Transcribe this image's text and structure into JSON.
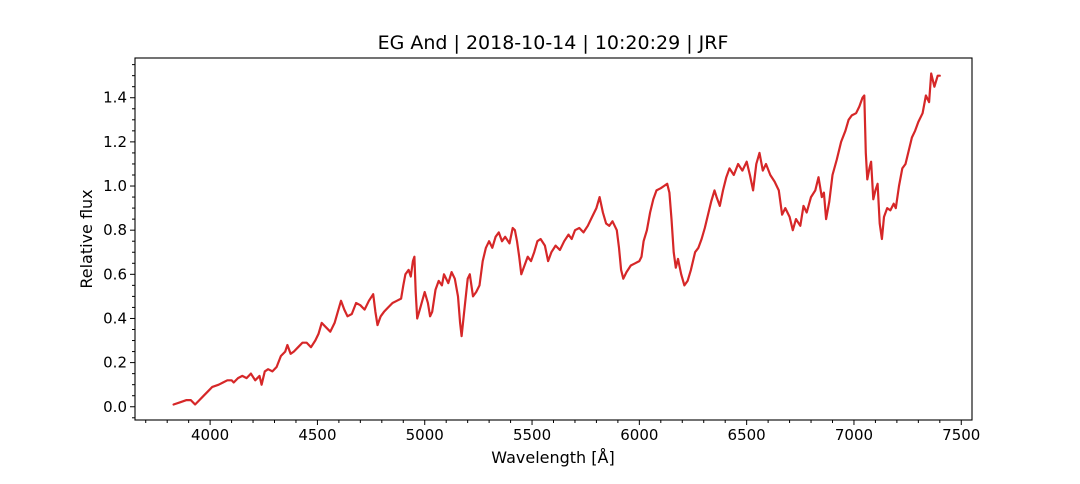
{
  "chart_data": {
    "type": "line",
    "title": "EG And | 2018-10-14 | 10:20:29 | JRF",
    "xlabel": "Wavelength [Å]",
    "ylabel": "Relative flux",
    "xlim": [
      3650,
      7550
    ],
    "ylim": [
      -0.06,
      1.58
    ],
    "x_ticks": [
      4000,
      4500,
      5000,
      5500,
      6000,
      6500,
      7000,
      7500
    ],
    "y_ticks": [
      0.0,
      0.2,
      0.4,
      0.6,
      0.8,
      1.0,
      1.2,
      1.4
    ],
    "x_tick_labels": [
      "4000",
      "4500",
      "5000",
      "5500",
      "6000",
      "6500",
      "7000",
      "7500"
    ],
    "y_tick_labels": [
      "0.0",
      "0.2",
      "0.4",
      "0.6",
      "0.8",
      "1.0",
      "1.2",
      "1.4"
    ],
    "grid": false,
    "legend": "none",
    "series": [
      {
        "color": "#d62728",
        "points": [
          [
            3830,
            0.01
          ],
          [
            3860,
            0.02
          ],
          [
            3890,
            0.03
          ],
          [
            3910,
            0.03
          ],
          [
            3930,
            0.01
          ],
          [
            3950,
            0.03
          ],
          [
            3970,
            0.05
          ],
          [
            3990,
            0.07
          ],
          [
            4010,
            0.09
          ],
          [
            4040,
            0.1
          ],
          [
            4060,
            0.11
          ],
          [
            4080,
            0.12
          ],
          [
            4100,
            0.12
          ],
          [
            4110,
            0.11
          ],
          [
            4130,
            0.13
          ],
          [
            4150,
            0.14
          ],
          [
            4170,
            0.13
          ],
          [
            4190,
            0.15
          ],
          [
            4210,
            0.12
          ],
          [
            4230,
            0.14
          ],
          [
            4240,
            0.1
          ],
          [
            4255,
            0.16
          ],
          [
            4270,
            0.17
          ],
          [
            4290,
            0.16
          ],
          [
            4310,
            0.18
          ],
          [
            4330,
            0.23
          ],
          [
            4350,
            0.25
          ],
          [
            4360,
            0.28
          ],
          [
            4375,
            0.24
          ],
          [
            4390,
            0.25
          ],
          [
            4410,
            0.27
          ],
          [
            4430,
            0.29
          ],
          [
            4450,
            0.29
          ],
          [
            4470,
            0.27
          ],
          [
            4490,
            0.3
          ],
          [
            4505,
            0.33
          ],
          [
            4520,
            0.38
          ],
          [
            4540,
            0.36
          ],
          [
            4560,
            0.34
          ],
          [
            4580,
            0.38
          ],
          [
            4595,
            0.43
          ],
          [
            4610,
            0.48
          ],
          [
            4625,
            0.44
          ],
          [
            4640,
            0.41
          ],
          [
            4660,
            0.42
          ],
          [
            4680,
            0.47
          ],
          [
            4700,
            0.46
          ],
          [
            4720,
            0.44
          ],
          [
            4740,
            0.48
          ],
          [
            4760,
            0.51
          ],
          [
            4770,
            0.43
          ],
          [
            4780,
            0.37
          ],
          [
            4795,
            0.41
          ],
          [
            4810,
            0.43
          ],
          [
            4830,
            0.45
          ],
          [
            4850,
            0.47
          ],
          [
            4870,
            0.48
          ],
          [
            4890,
            0.49
          ],
          [
            4900,
            0.55
          ],
          [
            4910,
            0.6
          ],
          [
            4925,
            0.62
          ],
          [
            4935,
            0.59
          ],
          [
            4945,
            0.66
          ],
          [
            4952,
            0.68
          ],
          [
            4958,
            0.52
          ],
          [
            4965,
            0.4
          ],
          [
            4980,
            0.45
          ],
          [
            5000,
            0.52
          ],
          [
            5015,
            0.47
          ],
          [
            5025,
            0.41
          ],
          [
            5035,
            0.43
          ],
          [
            5050,
            0.53
          ],
          [
            5065,
            0.57
          ],
          [
            5080,
            0.55
          ],
          [
            5090,
            0.6
          ],
          [
            5110,
            0.56
          ],
          [
            5125,
            0.61
          ],
          [
            5140,
            0.58
          ],
          [
            5155,
            0.5
          ],
          [
            5165,
            0.38
          ],
          [
            5172,
            0.32
          ],
          [
            5185,
            0.44
          ],
          [
            5200,
            0.58
          ],
          [
            5210,
            0.6
          ],
          [
            5225,
            0.5
          ],
          [
            5240,
            0.52
          ],
          [
            5255,
            0.55
          ],
          [
            5270,
            0.66
          ],
          [
            5285,
            0.72
          ],
          [
            5300,
            0.75
          ],
          [
            5315,
            0.72
          ],
          [
            5330,
            0.77
          ],
          [
            5345,
            0.79
          ],
          [
            5360,
            0.75
          ],
          [
            5375,
            0.77
          ],
          [
            5395,
            0.74
          ],
          [
            5410,
            0.81
          ],
          [
            5420,
            0.8
          ],
          [
            5430,
            0.75
          ],
          [
            5440,
            0.68
          ],
          [
            5450,
            0.6
          ],
          [
            5465,
            0.64
          ],
          [
            5480,
            0.68
          ],
          [
            5495,
            0.66
          ],
          [
            5510,
            0.7
          ],
          [
            5525,
            0.75
          ],
          [
            5540,
            0.76
          ],
          [
            5560,
            0.73
          ],
          [
            5575,
            0.66
          ],
          [
            5590,
            0.7
          ],
          [
            5610,
            0.73
          ],
          [
            5630,
            0.71
          ],
          [
            5650,
            0.75
          ],
          [
            5670,
            0.78
          ],
          [
            5685,
            0.76
          ],
          [
            5700,
            0.8
          ],
          [
            5720,
            0.81
          ],
          [
            5740,
            0.79
          ],
          [
            5760,
            0.82
          ],
          [
            5780,
            0.86
          ],
          [
            5800,
            0.9
          ],
          [
            5815,
            0.95
          ],
          [
            5830,
            0.88
          ],
          [
            5845,
            0.83
          ],
          [
            5860,
            0.82
          ],
          [
            5875,
            0.84
          ],
          [
            5895,
            0.8
          ],
          [
            5905,
            0.72
          ],
          [
            5915,
            0.62
          ],
          [
            5925,
            0.58
          ],
          [
            5940,
            0.61
          ],
          [
            5960,
            0.64
          ],
          [
            5980,
            0.65
          ],
          [
            6000,
            0.66
          ],
          [
            6010,
            0.68
          ],
          [
            6020,
            0.75
          ],
          [
            6035,
            0.8
          ],
          [
            6050,
            0.88
          ],
          [
            6065,
            0.94
          ],
          [
            6080,
            0.98
          ],
          [
            6100,
            0.99
          ],
          [
            6115,
            1.0
          ],
          [
            6130,
            1.01
          ],
          [
            6140,
            0.97
          ],
          [
            6150,
            0.85
          ],
          [
            6160,
            0.7
          ],
          [
            6170,
            0.63
          ],
          [
            6180,
            0.67
          ],
          [
            6195,
            0.6
          ],
          [
            6210,
            0.55
          ],
          [
            6225,
            0.57
          ],
          [
            6240,
            0.62
          ],
          [
            6260,
            0.7
          ],
          [
            6275,
            0.72
          ],
          [
            6290,
            0.76
          ],
          [
            6305,
            0.81
          ],
          [
            6320,
            0.87
          ],
          [
            6335,
            0.93
          ],
          [
            6350,
            0.98
          ],
          [
            6360,
            0.95
          ],
          [
            6375,
            0.91
          ],
          [
            6390,
            0.98
          ],
          [
            6405,
            1.04
          ],
          [
            6420,
            1.08
          ],
          [
            6440,
            1.05
          ],
          [
            6460,
            1.1
          ],
          [
            6480,
            1.07
          ],
          [
            6500,
            1.11
          ],
          [
            6515,
            1.05
          ],
          [
            6530,
            0.98
          ],
          [
            6545,
            1.1
          ],
          [
            6560,
            1.15
          ],
          [
            6575,
            1.07
          ],
          [
            6590,
            1.1
          ],
          [
            6610,
            1.05
          ],
          [
            6630,
            1.02
          ],
          [
            6650,
            0.98
          ],
          [
            6665,
            0.87
          ],
          [
            6680,
            0.9
          ],
          [
            6700,
            0.86
          ],
          [
            6715,
            0.8
          ],
          [
            6730,
            0.85
          ],
          [
            6750,
            0.82
          ],
          [
            6765,
            0.91
          ],
          [
            6780,
            0.88
          ],
          [
            6800,
            0.95
          ],
          [
            6820,
            0.98
          ],
          [
            6835,
            1.04
          ],
          [
            6850,
            0.95
          ],
          [
            6860,
            0.97
          ],
          [
            6870,
            0.85
          ],
          [
            6885,
            0.93
          ],
          [
            6900,
            1.05
          ],
          [
            6920,
            1.12
          ],
          [
            6940,
            1.2
          ],
          [
            6960,
            1.25
          ],
          [
            6975,
            1.3
          ],
          [
            6990,
            1.32
          ],
          [
            7010,
            1.33
          ],
          [
            7025,
            1.36
          ],
          [
            7040,
            1.4
          ],
          [
            7048,
            1.41
          ],
          [
            7055,
            1.15
          ],
          [
            7062,
            1.03
          ],
          [
            7072,
            1.08
          ],
          [
            7080,
            1.11
          ],
          [
            7090,
            0.94
          ],
          [
            7100,
            0.98
          ],
          [
            7110,
            1.01
          ],
          [
            7120,
            0.83
          ],
          [
            7130,
            0.76
          ],
          [
            7140,
            0.86
          ],
          [
            7155,
            0.9
          ],
          [
            7170,
            0.89
          ],
          [
            7185,
            0.92
          ],
          [
            7195,
            0.9
          ],
          [
            7210,
            1.0
          ],
          [
            7225,
            1.08
          ],
          [
            7240,
            1.1
          ],
          [
            7255,
            1.16
          ],
          [
            7270,
            1.22
          ],
          [
            7285,
            1.25
          ],
          [
            7300,
            1.29
          ],
          [
            7320,
            1.33
          ],
          [
            7335,
            1.41
          ],
          [
            7350,
            1.38
          ],
          [
            7360,
            1.51
          ],
          [
            7375,
            1.45
          ],
          [
            7390,
            1.5
          ],
          [
            7400,
            1.5
          ]
        ]
      }
    ]
  }
}
